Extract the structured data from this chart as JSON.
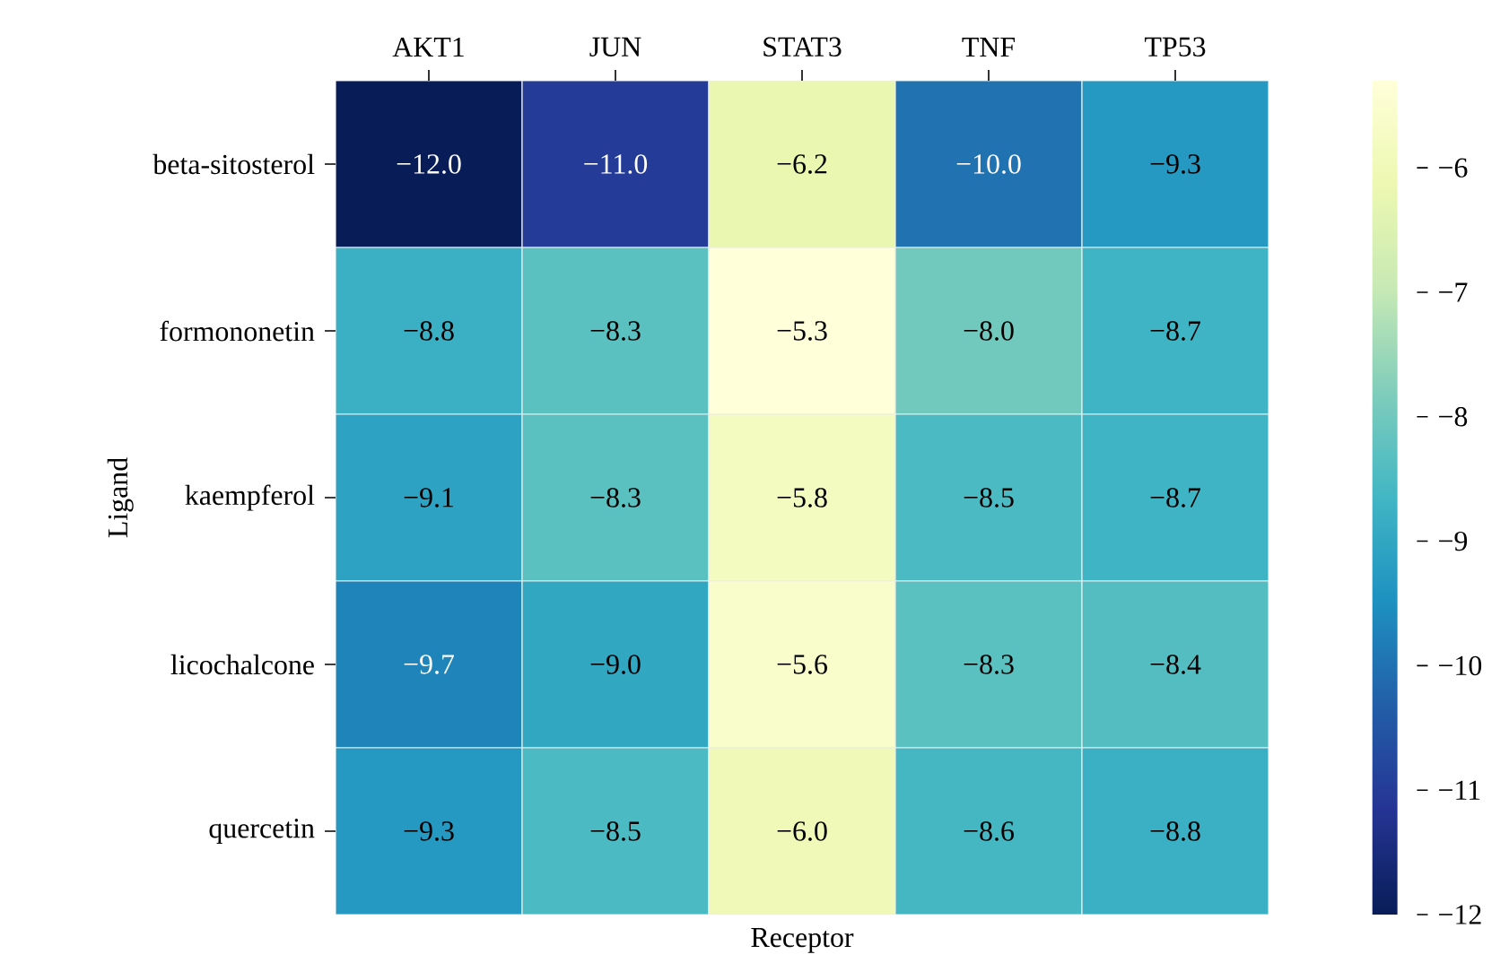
{
  "chart_data": {
    "type": "heatmap",
    "xlabel": "Receptor",
    "ylabel": "Ligand",
    "categories": [
      "AKT1",
      "JUN",
      "STAT3",
      "TNF",
      "TP53"
    ],
    "y_categories": [
      "beta-sitosterol",
      "formononetin",
      "kaempferol",
      "licochalcone",
      "quercetin"
    ],
    "cells": [
      [
        -12.0,
        -11.0,
        -6.2,
        -10.0,
        -9.3
      ],
      [
        -8.8,
        -8.3,
        -5.3,
        -8.0,
        -8.7
      ],
      [
        -9.1,
        -8.3,
        -5.8,
        -8.5,
        -8.7
      ],
      [
        -9.7,
        -9.0,
        -5.6,
        -8.3,
        -8.4
      ],
      [
        -9.3,
        -8.5,
        -6.0,
        -8.6,
        -8.8
      ]
    ],
    "cell_labels": [
      [
        "−12.0",
        "−11.0",
        "−6.2",
        "−10.0",
        "−9.3"
      ],
      [
        "−8.8",
        "−8.3",
        "−5.3",
        "−8.0",
        "−8.7"
      ],
      [
        "−9.1",
        "−8.3",
        "−5.8",
        "−8.5",
        "−8.7"
      ],
      [
        "−9.7",
        "−9.0",
        "−5.6",
        "−8.3",
        "−8.4"
      ],
      [
        "−9.3",
        "−8.5",
        "−6.0",
        "−8.6",
        "−8.8"
      ]
    ],
    "clim": [
      -12,
      -5.3
    ],
    "cticks": [
      {
        "value": -12,
        "label": "−12"
      },
      {
        "value": -11,
        "label": "−11"
      },
      {
        "value": -10,
        "label": "−10"
      },
      {
        "value": -9,
        "label": "−9"
      },
      {
        "value": -8,
        "label": "−8"
      },
      {
        "value": -7,
        "label": "−7"
      },
      {
        "value": -6,
        "label": "−6"
      }
    ]
  }
}
